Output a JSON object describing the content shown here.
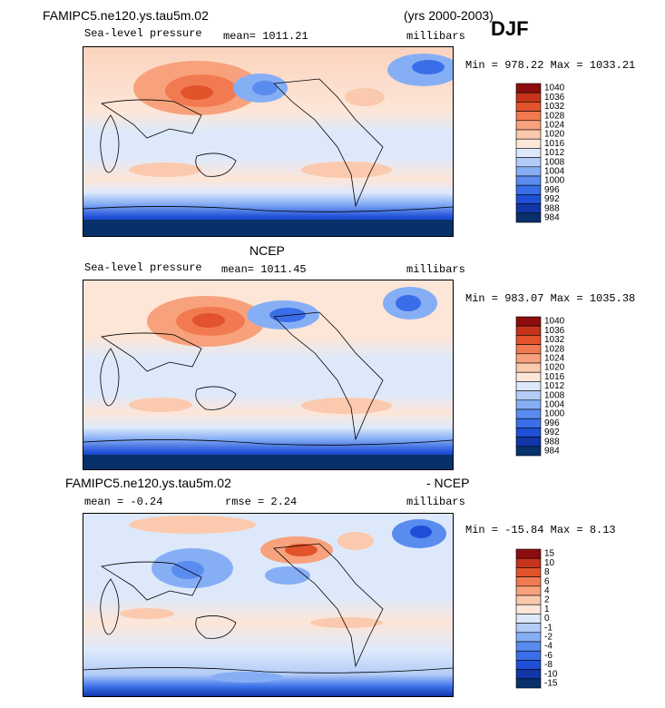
{
  "header": {
    "case_title": "FAMIPC5.ne120.ys.tau5m.02",
    "years": "(yrs 2000-2003)",
    "season": "DJF"
  },
  "panels": [
    {
      "title": "",
      "variable": "Sea-level pressure",
      "mean": "mean= 1011.21",
      "units": "millibars",
      "range": "Min = 978.22 Max = 1033.21"
    },
    {
      "title": "NCEP",
      "variable": "Sea-level pressure",
      "mean": "mean= 1011.45",
      "units": "millibars",
      "range": "Min = 983.07 Max = 1035.38"
    },
    {
      "title_left": "FAMIPC5.ne120.ys.tau5m.02",
      "title_right": "- NCEP",
      "mean": "mean =   -0.24",
      "rmse": "rmse =    2.24",
      "units": "millibars",
      "range": "Min = -15.84 Max =    8.13"
    }
  ],
  "chart_data": [
    {
      "type": "heatmap",
      "title": "FAMIPC5.ne120.ys.tau5m.02 Sea-level pressure (DJF)",
      "units": "millibars",
      "levels": [
        "984",
        "988",
        "992",
        "996",
        "1000",
        "1004",
        "1008",
        "1012",
        "1016",
        "1020",
        "1024",
        "1028",
        "1032",
        "1036",
        "1040"
      ],
      "colors": [
        "#08306b",
        "#1236a8",
        "#1f4fd6",
        "#3a6ee8",
        "#5a8cf0",
        "#86aef5",
        "#b3ccf7",
        "#dde9fb",
        "#fde6d8",
        "#fbc9ad",
        "#f7a27c",
        "#f27a50",
        "#e2532b",
        "#c4331a",
        "#8b0d0d"
      ],
      "min": 978.22,
      "max": 1033.21,
      "mean": 1011.21
    },
    {
      "type": "heatmap",
      "title": "NCEP Sea-level pressure (DJF)",
      "units": "millibars",
      "levels": [
        "984",
        "988",
        "992",
        "996",
        "1000",
        "1004",
        "1008",
        "1012",
        "1016",
        "1020",
        "1024",
        "1028",
        "1032",
        "1036",
        "1040"
      ],
      "colors": [
        "#08306b",
        "#1236a8",
        "#1f4fd6",
        "#3a6ee8",
        "#5a8cf0",
        "#86aef5",
        "#b3ccf7",
        "#dde9fb",
        "#fde6d8",
        "#fbc9ad",
        "#f7a27c",
        "#f27a50",
        "#e2532b",
        "#c4331a",
        "#8b0d0d"
      ],
      "min": 983.07,
      "max": 1035.38,
      "mean": 1011.45
    },
    {
      "type": "heatmap",
      "title": "FAMIPC5.ne120.ys.tau5m.02 - NCEP",
      "units": "millibars",
      "levels": [
        "-15",
        "-10",
        "-8",
        "-6",
        "-4",
        "-2",
        "-1",
        "0",
        "1",
        "2",
        "4",
        "6",
        "8",
        "10",
        "15"
      ],
      "colors": [
        "#08306b",
        "#1236a8",
        "#1f4fd6",
        "#3a6ee8",
        "#5a8cf0",
        "#86aef5",
        "#b3ccf7",
        "#dde9fb",
        "#fde6d8",
        "#fbc9ad",
        "#f7a27c",
        "#f27a50",
        "#e2532b",
        "#c4331a",
        "#8b0d0d"
      ],
      "min": -15.84,
      "max": 8.13,
      "mean": -0.24,
      "rmse": 2.24
    }
  ]
}
